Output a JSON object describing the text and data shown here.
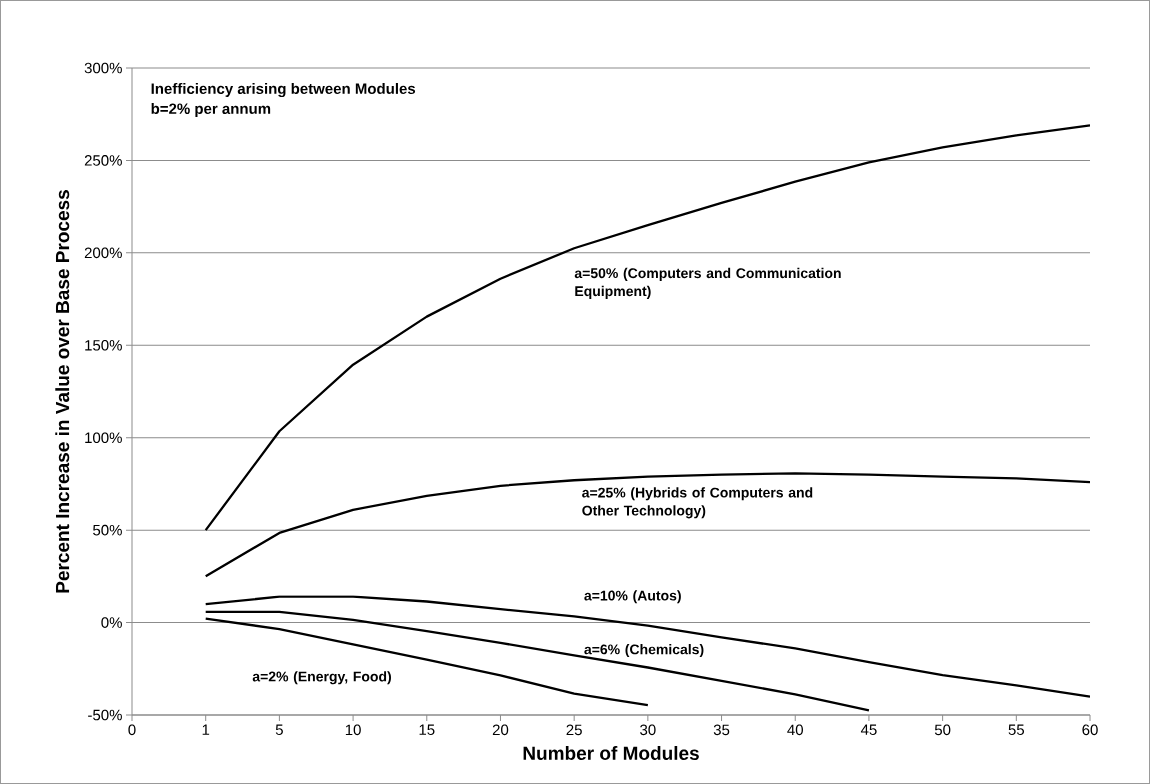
{
  "chart_data": {
    "type": "line",
    "xlabel": "Number of Modules",
    "ylabel": "Percent Increase in Value over Base Process",
    "annotations": [
      "Inefficiency arising between Modules",
      "b=2% per annum"
    ],
    "categories": [
      "0",
      "1",
      "5",
      "10",
      "15",
      "20",
      "25",
      "30",
      "35",
      "40",
      "45",
      "50",
      "55",
      "60"
    ],
    "ylim": [
      -50,
      300
    ],
    "yticks": [
      {
        "value": -50,
        "label": "-50%"
      },
      {
        "value": 0,
        "label": "0%"
      },
      {
        "value": 50,
        "label": "50%"
      },
      {
        "value": 100,
        "label": "100%"
      },
      {
        "value": 150,
        "label": "150%"
      },
      {
        "value": 200,
        "label": "200%"
      },
      {
        "value": 250,
        "label": "250%"
      },
      {
        "value": 300,
        "label": "300%"
      }
    ],
    "grid": "y",
    "series": [
      {
        "name": "a=50% (Computers and Communication Equipment)",
        "color": "#000000",
        "values": [
          null,
          50,
          103.5,
          139.5,
          165.5,
          186,
          202.5,
          215,
          227,
          238.5,
          249,
          257,
          263.5,
          269
        ]
      },
      {
        "name": "a=25% (Hybrids of Computers and Other Technology)",
        "color": "#000000",
        "values": [
          null,
          25,
          48.5,
          61,
          68.5,
          74,
          77,
          79,
          80,
          80.7,
          80,
          79,
          78,
          76
        ]
      },
      {
        "name": "a=10% (Autos)",
        "color": "#000000",
        "values": [
          null,
          10,
          14,
          14,
          11.4,
          7.3,
          3.3,
          -1.7,
          -8,
          -14,
          -21.4,
          -28.4,
          -34,
          -40
        ]
      },
      {
        "name": "a=6% (Chemicals)",
        "color": "#000000",
        "values": [
          null,
          5.8,
          5.8,
          1.4,
          -4.6,
          -11,
          -17.8,
          -24.3,
          -31.5,
          -38.8,
          -47.5,
          null,
          null,
          null
        ]
      },
      {
        "name": "a=2% (Energy, Food)",
        "color": "#000000",
        "values": [
          null,
          2.1,
          -3.5,
          -11.8,
          -20,
          -28.6,
          -38.4,
          -44.6,
          null,
          null,
          null,
          null,
          null,
          null
        ]
      }
    ]
  }
}
